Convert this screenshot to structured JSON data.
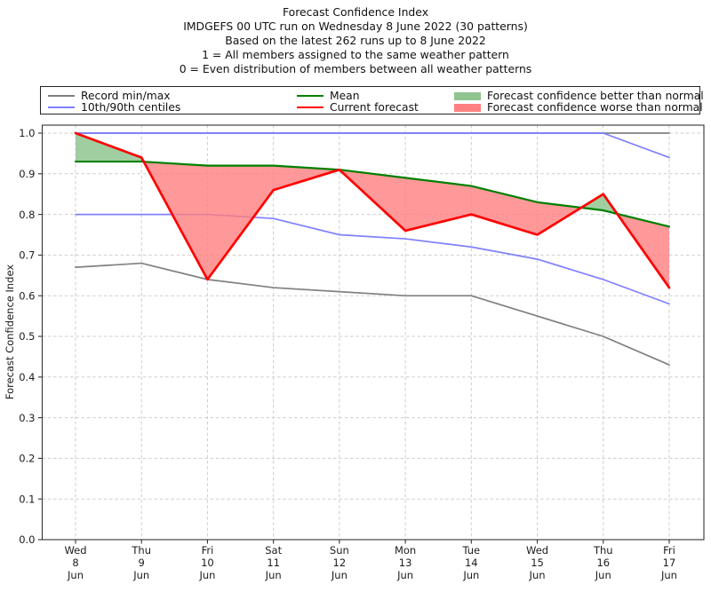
{
  "chart_data": {
    "type": "line",
    "title": "Forecast Confidence Index",
    "subtitle_lines": [
      "IMDGEFS 00 UTC run on Wednesday 8 June 2022 (30 patterns)",
      "Based on the latest 262 runs up to 8 June 2022",
      "1 = All members assigned to the same weather pattern",
      "0 = Even distribution of members between all weather patterns"
    ],
    "ylabel": "Forecast Confidence Index",
    "ylim": [
      0.0,
      1.0
    ],
    "ytick_step": 0.1,
    "y_ticks": [
      "0.0",
      "0.1",
      "0.2",
      "0.3",
      "0.4",
      "0.5",
      "0.6",
      "0.7",
      "0.8",
      "0.9",
      "1.0"
    ],
    "grid": "dashed, horizontal and vertical",
    "x_tick_labels": [
      [
        "Wed",
        "8",
        "Jun"
      ],
      [
        "Thu",
        "9",
        "Jun"
      ],
      [
        "Fri",
        "10",
        "Jun"
      ],
      [
        "Sat",
        "11",
        "Jun"
      ],
      [
        "Sun",
        "12",
        "Jun"
      ],
      [
        "Mon",
        "13",
        "Jun"
      ],
      [
        "Tue",
        "14",
        "Jun"
      ],
      [
        "Wed",
        "15",
        "Jun"
      ],
      [
        "Thu",
        "16",
        "Jun"
      ],
      [
        "Fri",
        "17",
        "Jun"
      ]
    ],
    "series": [
      {
        "name": "record-max",
        "legend": "Record min/max",
        "color": "#808080",
        "width": 1.7,
        "values": [
          1.0,
          1.0,
          1.0,
          1.0,
          1.0,
          1.0,
          1.0,
          1.0,
          1.0,
          1.0
        ]
      },
      {
        "name": "record-min",
        "legend": "Record min/max",
        "color": "#808080",
        "width": 1.7,
        "values": [
          0.67,
          0.68,
          0.64,
          0.62,
          0.61,
          0.6,
          0.6,
          0.55,
          0.5,
          0.43
        ]
      },
      {
        "name": "90th-centile",
        "legend": "10th/90th centiles",
        "color": "#7f7fff",
        "width": 1.7,
        "values": [
          1.0,
          1.0,
          1.0,
          1.0,
          1.0,
          1.0,
          1.0,
          1.0,
          1.0,
          0.94
        ]
      },
      {
        "name": "10th-centile",
        "legend": "10th/90th centiles",
        "color": "#7f7fff",
        "width": 1.7,
        "values": [
          0.8,
          0.8,
          0.8,
          0.79,
          0.75,
          0.74,
          0.72,
          0.69,
          0.64,
          0.58
        ]
      },
      {
        "name": "mean",
        "legend": "Mean",
        "color": "#008000",
        "width": 2.2,
        "values": [
          0.93,
          0.93,
          0.92,
          0.92,
          0.91,
          0.89,
          0.87,
          0.83,
          0.81,
          0.77
        ]
      },
      {
        "name": "current-forecast",
        "legend": "Current forecast",
        "color": "#ff0000",
        "width": 2.7,
        "values": [
          1.0,
          0.94,
          0.64,
          0.86,
          0.91,
          0.76,
          0.8,
          0.75,
          0.85,
          0.62
        ]
      }
    ],
    "fills": {
      "better": {
        "label": "Forecast confidence better than normal",
        "color": "#90c590",
        "rule": "area between Current forecast and Mean where forecast > mean"
      },
      "worse": {
        "label": "Forecast confidence worse than normal",
        "color": "#ff8080",
        "rule": "area between Current forecast and Mean where forecast < mean"
      }
    },
    "legend": {
      "position": "top",
      "entries": [
        {
          "label": "Record min/max",
          "swatch": "line",
          "color": "#808080"
        },
        {
          "label": "10th/90th centiles",
          "swatch": "line",
          "color": "#7f7fff"
        },
        {
          "label": "Mean",
          "swatch": "line",
          "color": "#008000"
        },
        {
          "label": "Current forecast",
          "swatch": "line",
          "color": "#ff0000"
        },
        {
          "label": "Forecast confidence better than normal",
          "swatch": "patch",
          "color": "#90c590"
        },
        {
          "label": "Forecast confidence worse than normal",
          "swatch": "patch",
          "color": "#ff8080"
        }
      ]
    }
  }
}
